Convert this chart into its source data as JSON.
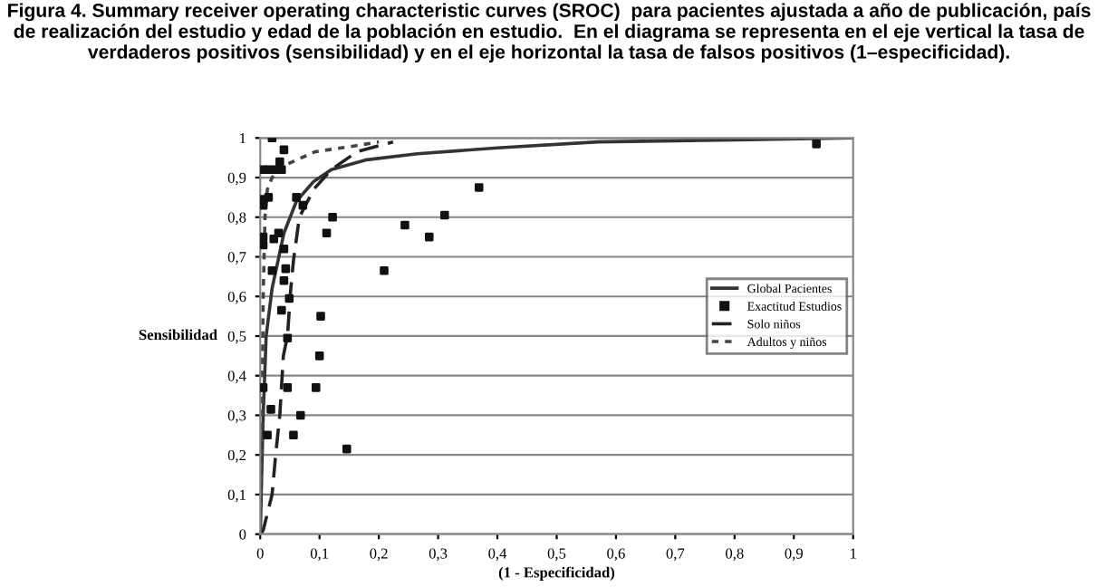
{
  "chart_data": {
    "type": "line",
    "title": "Figura 4. Summary receiver operating characteristic curves (SROC)  para pacientes ajustada a año de publicación, país de realización del estudio y edad de la población en estudio.  En el diagrama se representa en el eje vertical la tasa de verdaderos positivos (sensibilidad) y en el eje horizontal la tasa de falsos positivos (1–especificidad).",
    "xlabel": "(1 - Especificidad)",
    "ylabel": "Sensibilidad",
    "xlim": [
      0,
      1
    ],
    "ylim": [
      0,
      1
    ],
    "xticks": [
      0,
      {
        "value": 0.1,
        "label": "0,1"
      },
      {
        "value": 0.2,
        "label": "0,2"
      },
      {
        "value": 0.3,
        "label": "0,3"
      },
      {
        "value": 0.4,
        "label": "0,4"
      },
      {
        "value": 0.5,
        "label": "0,5"
      },
      {
        "value": 0.6,
        "label": "0,6"
      },
      {
        "value": 0.7,
        "label": "0,7"
      },
      {
        "value": 0.8,
        "label": "0,8"
      },
      {
        "value": 0.9,
        "label": "0,9"
      },
      1
    ],
    "yticks": [
      0,
      {
        "value": 0.1,
        "label": "0,1"
      },
      {
        "value": 0.2,
        "label": "0,2"
      },
      {
        "value": 0.3,
        "label": "0,3"
      },
      {
        "value": 0.4,
        "label": "0,4"
      },
      {
        "value": 0.5,
        "label": "0,5"
      },
      {
        "value": 0.6,
        "label": "0,6"
      },
      {
        "value": 0.7,
        "label": "0,7"
      },
      {
        "value": 0.8,
        "label": "0,8"
      },
      {
        "value": 0.9,
        "label": "0,9"
      },
      1
    ],
    "grid": "y",
    "legend": "right",
    "series": [
      {
        "name": "Global Pacientes",
        "line_style": "solid",
        "marker": "none",
        "color": "#333333",
        "x": [
          0,
          0.005,
          0.01,
          0.02,
          0.04,
          0.061,
          0.09,
          0.12,
          0.18,
          0.265,
          0.4,
          0.57,
          0.8,
          1
        ],
        "values": [
          0,
          0.3,
          0.5,
          0.62,
          0.76,
          0.84,
          0.89,
          0.92,
          0.945,
          0.96,
          0.975,
          0.99,
          0.995,
          1
        ]
      },
      {
        "name": "Exactitud Estudios",
        "type": "scatter",
        "marker": "square",
        "color": "#111111",
        "x": [
          0.02,
          0.005,
          0.014,
          0.04,
          0.026,
          0.033,
          0.036,
          0.005,
          0.014,
          0.005,
          0.061,
          0.072,
          0.122,
          0.112,
          0.244,
          0.285,
          0.311,
          0.369,
          0.209,
          0.005,
          0.005,
          0.023,
          0.031,
          0.04,
          0.043,
          0.02,
          0.04,
          0.049,
          0.036,
          0.102,
          0.046,
          0.1,
          0.005,
          0.046,
          0.094,
          0.018,
          0.012,
          0.068,
          0.056,
          0.146,
          0.938
        ],
        "values": [
          1.0,
          0.92,
          0.92,
          0.97,
          0.92,
          0.94,
          0.92,
          0.845,
          0.85,
          0.83,
          0.85,
          0.83,
          0.8,
          0.76,
          0.78,
          0.75,
          0.805,
          0.875,
          0.665,
          0.75,
          0.73,
          0.745,
          0.76,
          0.72,
          0.67,
          0.665,
          0.64,
          0.595,
          0.565,
          0.55,
          0.495,
          0.45,
          0.37,
          0.37,
          0.37,
          0.315,
          0.25,
          0.3,
          0.25,
          0.215,
          0.985
        ]
      },
      {
        "name": "Solo niños",
        "line_style": "dashed",
        "marker": "none",
        "color": "#222222",
        "x": [
          0,
          0.005,
          0.02,
          0.026,
          0.033,
          0.039,
          0.046,
          0.051,
          0.056,
          0.066,
          0.09,
          0.12,
          0.163,
          0.224
        ],
        "values": [
          0,
          0.01,
          0.1,
          0.2,
          0.3,
          0.45,
          0.5,
          0.61,
          0.69,
          0.8,
          0.87,
          0.92,
          0.965,
          0.99
        ]
      },
      {
        "name": "Adultos y niños",
        "line_style": "dotted",
        "marker": "none",
        "color": "#444444",
        "x": [
          0,
          0.003,
          0.005,
          0.008,
          0.012,
          0.02,
          0.04,
          0.092,
          0.16,
          0.2
        ],
        "values": [
          0,
          0.3,
          0.6,
          0.8,
          0.87,
          0.9,
          0.93,
          0.965,
          0.98,
          0.99
        ]
      }
    ]
  }
}
